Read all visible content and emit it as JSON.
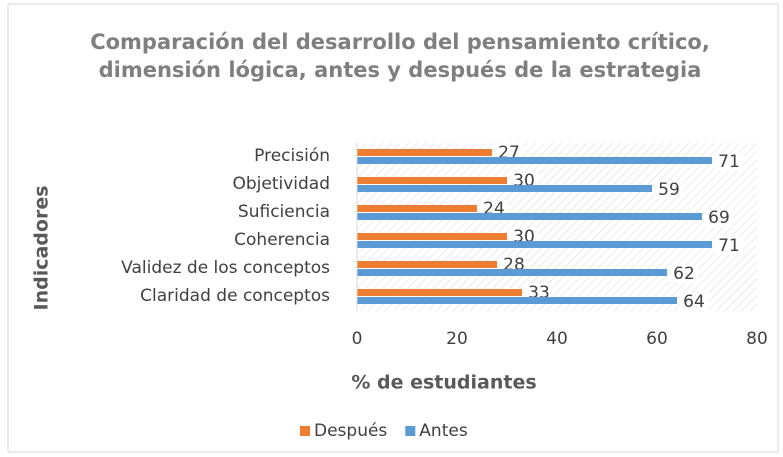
{
  "chart_data": {
    "type": "bar",
    "orientation": "horizontal",
    "title": "Comparación del desarrollo del pensamiento crítico, dimensión lógica, antes y después de la estrategia",
    "x_label": "% de estudiantes",
    "y_label": "Indicadores",
    "categories": [
      "Precisión",
      "Objetividad",
      "Suficiencia",
      "Coherencia",
      "Validez de los conceptos",
      "Claridad de conceptos"
    ],
    "series": [
      {
        "name": "Después",
        "color": "#ed7d31",
        "values": [
          27,
          30,
          24,
          30,
          28,
          33
        ]
      },
      {
        "name": "Antes",
        "color": "#5b9bd5",
        "values": [
          71,
          59,
          69,
          71,
          62,
          64
        ]
      }
    ],
    "xlim": [
      0,
      80
    ],
    "xticks": [
      0,
      20,
      40,
      60,
      80
    ],
    "legend": "bottom"
  }
}
